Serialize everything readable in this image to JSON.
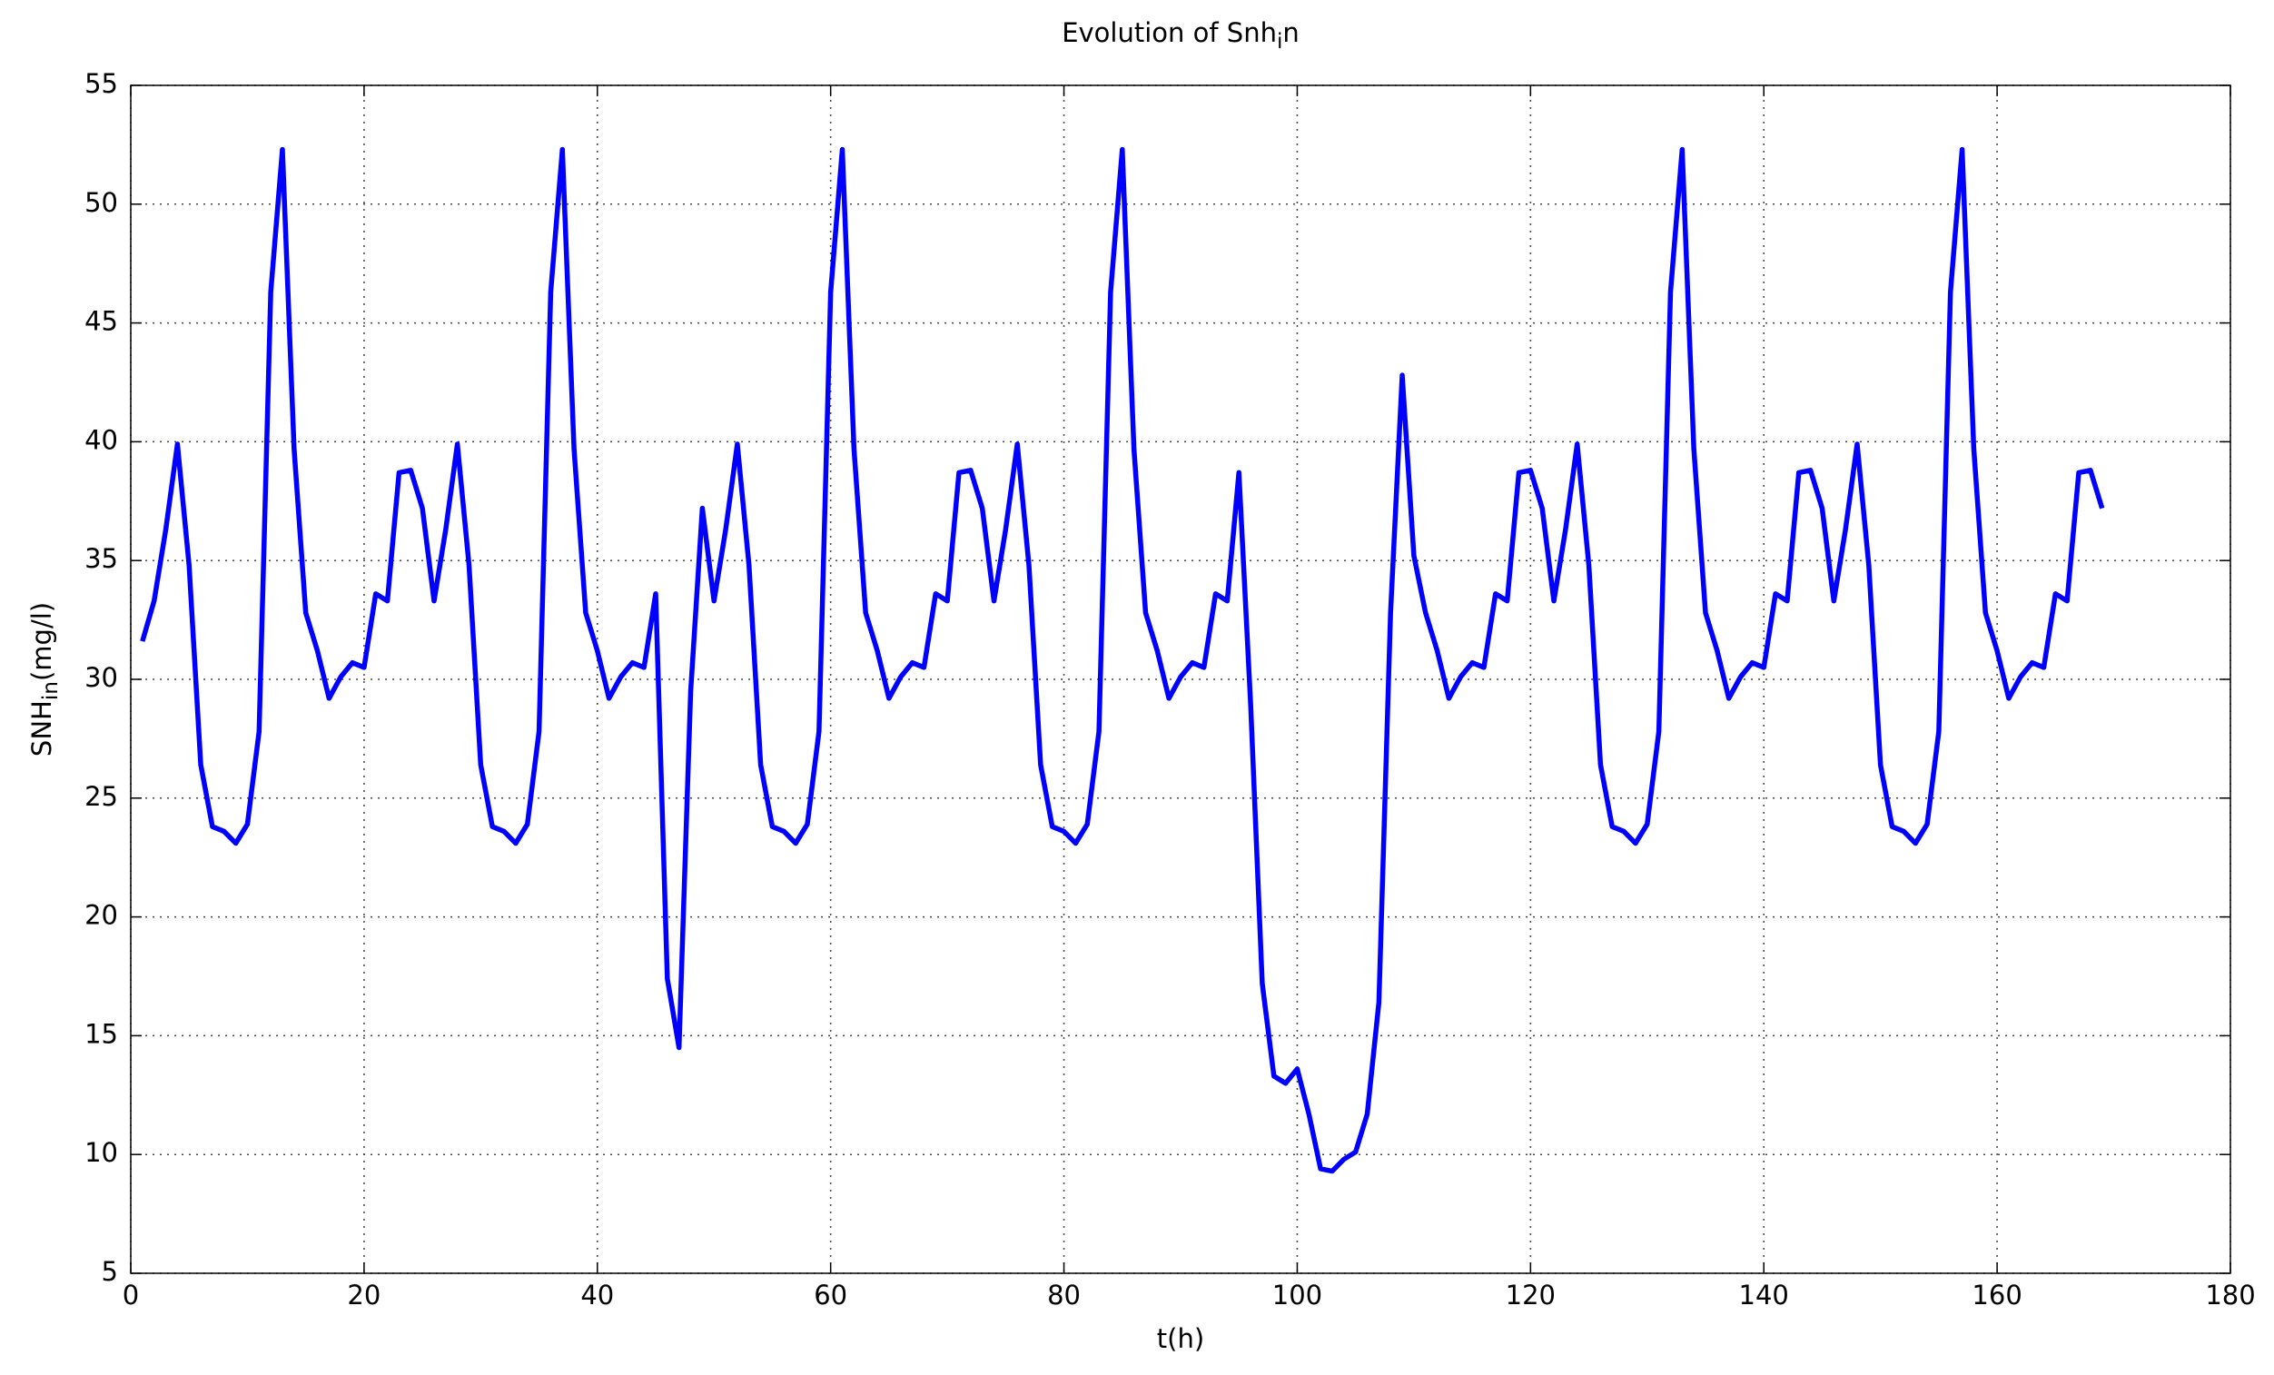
{
  "chart_data": {
    "type": "line",
    "title": "Evolution of Snh_in",
    "xlabel": "t(h)",
    "ylabel": "SNH_{in}(mg/l)",
    "xlim": [
      0,
      180
    ],
    "xticks": [
      0,
      20,
      40,
      60,
      80,
      100,
      120,
      140,
      160,
      180
    ],
    "ylim": [
      5,
      55
    ],
    "yticks": [
      5,
      10,
      15,
      20,
      25,
      30,
      35,
      40,
      45,
      50,
      55
    ],
    "grid": true,
    "x": [
      1,
      2,
      3,
      4,
      5,
      6,
      7,
      8,
      9,
      10,
      11,
      12,
      13,
      14,
      15,
      16,
      17,
      18,
      19,
      20,
      21,
      22,
      23,
      24,
      25,
      26,
      27,
      28,
      29,
      30,
      31,
      32,
      33,
      34,
      35,
      36,
      37,
      38,
      39,
      40,
      41,
      42,
      43,
      44,
      45,
      46,
      47,
      48,
      49,
      50,
      51,
      52,
      53,
      54,
      55,
      56,
      57,
      58,
      59,
      60,
      61,
      62,
      63,
      64,
      65,
      66,
      67,
      68,
      69,
      70,
      71,
      72,
      73,
      74,
      75,
      76,
      77,
      78,
      79,
      80,
      81,
      82,
      83,
      84,
      85,
      86,
      87,
      88,
      89,
      90,
      91,
      92,
      93,
      94,
      95,
      96,
      97,
      98,
      99,
      100,
      101,
      102,
      103,
      104,
      105,
      106,
      107,
      108,
      109,
      110,
      111,
      112,
      113,
      114,
      115,
      116,
      117,
      118,
      119,
      120,
      121,
      122,
      123,
      124,
      125,
      126,
      127,
      128,
      129,
      130,
      131,
      132,
      133,
      134,
      135,
      136,
      137,
      138,
      139,
      140,
      141,
      142,
      143,
      144,
      145,
      146,
      147,
      148,
      149,
      150,
      151,
      152,
      153,
      154,
      155,
      156,
      157,
      158,
      159,
      160,
      161,
      162,
      163,
      164,
      165,
      166,
      167,
      168,
      169
    ],
    "series": [
      {
        "color": "#0000ff",
        "values": [
          31.6,
          33.3,
          36.3,
          39.9,
          34.8,
          26.4,
          23.8,
          23.6,
          23.1,
          23.9,
          27.8,
          46.3,
          52.3,
          39.7,
          32.8,
          31.2,
          29.2,
          30.1,
          30.7,
          30.5,
          33.6,
          33.3,
          38.7,
          38.8,
          37.2,
          33.3,
          36.3,
          39.9,
          34.8,
          26.4,
          23.8,
          23.6,
          23.1,
          23.9,
          27.8,
          46.3,
          52.3,
          39.7,
          32.8,
          31.2,
          29.2,
          30.1,
          30.7,
          30.5,
          33.6,
          17.4,
          14.5,
          29.5,
          37.2,
          33.3,
          36.3,
          39.9,
          34.8,
          26.4,
          23.8,
          23.6,
          23.1,
          23.9,
          27.8,
          46.3,
          52.3,
          39.7,
          32.8,
          31.2,
          29.2,
          30.1,
          30.7,
          30.5,
          33.6,
          33.3,
          38.7,
          38.8,
          37.2,
          33.3,
          36.3,
          39.9,
          34.8,
          26.4,
          23.8,
          23.6,
          23.1,
          23.9,
          27.8,
          46.3,
          52.3,
          39.7,
          32.8,
          31.2,
          29.2,
          30.1,
          30.7,
          30.5,
          33.6,
          33.3,
          38.7,
          29.0,
          17.2,
          13.3,
          13.0,
          13.6,
          11.7,
          9.4,
          9.3,
          9.8,
          10.1,
          11.7,
          16.4,
          32.8,
          42.8,
          35.2,
          32.8,
          31.2,
          29.2,
          30.1,
          30.7,
          30.5,
          33.6,
          33.3,
          38.7,
          38.8,
          37.2,
          33.3,
          36.3,
          39.9,
          34.8,
          26.4,
          23.8,
          23.6,
          23.1,
          23.9,
          27.8,
          46.3,
          52.3,
          39.7,
          32.8,
          31.2,
          29.2,
          30.1,
          30.7,
          30.5,
          33.6,
          33.3,
          38.7,
          38.8,
          37.2,
          33.3,
          36.3,
          39.9,
          34.8,
          26.4,
          23.8,
          23.6,
          23.1,
          23.9,
          27.8,
          46.3,
          52.3,
          39.7,
          32.8,
          31.2,
          29.2,
          30.1,
          30.7,
          30.5,
          33.6,
          33.3,
          38.7,
          38.8,
          37.2
        ]
      }
    ]
  }
}
